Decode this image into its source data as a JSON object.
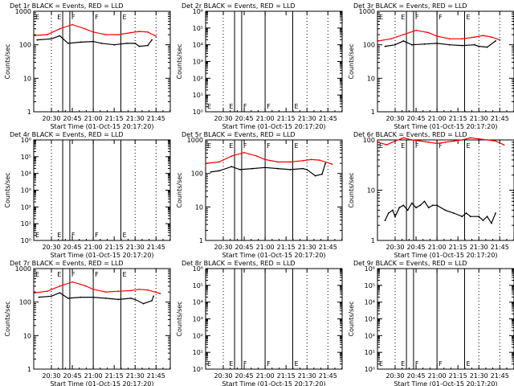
{
  "figure": {
    "start_time_label": "Start Time (01-Oct-15 20:17:20)"
  },
  "chart_data": [
    {
      "type": "line",
      "title": "Det 1r BLACK = Events, RED = LLD",
      "xlabel": "Start Time (01-Oct-15 20:17:20)",
      "ylabel": "Counts/sec",
      "y_scale": "log",
      "ylim": [
        1,
        1000
      ],
      "y_ticks": [
        "1",
        "10",
        "100",
        "1000"
      ],
      "x_ticks": [
        "20:30",
        "20:45",
        "21:00",
        "21:15",
        "21:30",
        "21:45"
      ],
      "markers": [
        "E",
        "F",
        "F",
        "E"
      ],
      "series": [
        {
          "color": "#000000",
          "points": [
            [
              20.33,
              140
            ],
            [
              20.5,
              150
            ],
            [
              20.6,
              185
            ],
            [
              20.7,
              110
            ],
            [
              20.85,
              120
            ],
            [
              21.0,
              125
            ],
            [
              21.1,
              110
            ],
            [
              21.25,
              100
            ],
            [
              21.4,
              110
            ],
            [
              21.5,
              110
            ],
            [
              21.55,
              90
            ],
            [
              21.65,
              95
            ],
            [
              21.7,
              140
            ]
          ]
        },
        {
          "color": "#ff0000",
          "points": [
            [
              20.3,
              190
            ],
            [
              20.45,
              200
            ],
            [
              20.6,
              300
            ],
            [
              20.75,
              400
            ],
            [
              20.9,
              300
            ],
            [
              21.0,
              240
            ],
            [
              21.15,
              200
            ],
            [
              21.3,
              200
            ],
            [
              21.45,
              230
            ],
            [
              21.55,
              250
            ],
            [
              21.65,
              240
            ],
            [
              21.75,
              180
            ]
          ]
        }
      ]
    },
    {
      "type": "line",
      "title": "Det 2r BLACK = Events, RED = LLD",
      "xlabel": "Start Time (01-Oct-15 20:17:20)",
      "ylabel": "Counts/sec",
      "y_scale": "log",
      "ylim": [
        1,
        1000000
      ],
      "y_ticks": [
        "10⁰",
        "10¹",
        "10²",
        "10³",
        "10⁴",
        "10⁵",
        "10⁶"
      ],
      "x_ticks": [
        "20:30",
        "20:45",
        "21:00",
        "21:15",
        "21:30",
        "21:45"
      ],
      "markers": [
        "E",
        "F",
        "F",
        "E"
      ],
      "series": []
    },
    {
      "type": "line",
      "title": "Det 3r BLACK = Events, RED = LLD",
      "xlabel": "Start Time (01-Oct-15 20:17:20)",
      "ylabel": "Counts/sec",
      "y_scale": "log",
      "ylim": [
        1,
        1000
      ],
      "y_ticks": [
        "1",
        "10",
        "100",
        "1000"
      ],
      "x_ticks": [
        "20:30",
        "20:45",
        "21:00",
        "21:15",
        "21:30",
        "21:45"
      ],
      "markers": [
        "E",
        "F",
        "F",
        "E"
      ],
      "series": [
        {
          "color": "#000000",
          "points": [
            [
              20.38,
              90
            ],
            [
              20.5,
              100
            ],
            [
              20.6,
              130
            ],
            [
              20.7,
              100
            ],
            [
              20.85,
              105
            ],
            [
              21.0,
              110
            ],
            [
              21.15,
              100
            ],
            [
              21.3,
              95
            ],
            [
              21.45,
              100
            ],
            [
              21.5,
              90
            ],
            [
              21.6,
              85
            ],
            [
              21.7,
              130
            ]
          ]
        },
        {
          "color": "#ff0000",
          "points": [
            [
              20.3,
              130
            ],
            [
              20.45,
              150
            ],
            [
              20.6,
              200
            ],
            [
              20.75,
              270
            ],
            [
              20.9,
              230
            ],
            [
              21.0,
              180
            ],
            [
              21.15,
              150
            ],
            [
              21.3,
              150
            ],
            [
              21.45,
              170
            ],
            [
              21.55,
              190
            ],
            [
              21.65,
              170
            ],
            [
              21.75,
              140
            ]
          ]
        }
      ]
    },
    {
      "type": "line",
      "title": "Det 4r BLACK = Events, RED = LLD",
      "xlabel": "Start Time (01-Oct-15 20:17:20)",
      "ylabel": "Counts/sec",
      "y_scale": "log",
      "ylim": [
        1,
        1000000
      ],
      "y_ticks": [
        "10⁰",
        "10¹",
        "10²",
        "10³",
        "10⁴",
        "10⁵",
        "10⁶"
      ],
      "x_ticks": [
        "20:30",
        "20:45",
        "21:00",
        "21:15",
        "21:30",
        "21:45"
      ],
      "markers": [
        "E",
        "F",
        "F",
        "E"
      ],
      "series": []
    },
    {
      "type": "line",
      "title": "Det 5r BLACK = Events, RED = LLD",
      "xlabel": "Start Time (01-Oct-15 20:17:20)",
      "ylabel": "Counts/sec",
      "y_scale": "log",
      "ylim": [
        1,
        1000
      ],
      "y_ticks": [
        "1",
        "10",
        "100",
        "1000"
      ],
      "x_ticks": [
        "20:30",
        "20:45",
        "21:00",
        "21:15",
        "21:30",
        "21:45"
      ],
      "markers": [
        "E",
        "F",
        "F",
        "E"
      ],
      "series": [
        {
          "color": "#000000",
          "points": [
            [
              20.35,
              110
            ],
            [
              20.45,
              120
            ],
            [
              20.6,
              160
            ],
            [
              20.7,
              130
            ],
            [
              20.85,
              140
            ],
            [
              21.0,
              150
            ],
            [
              21.15,
              140
            ],
            [
              21.3,
              130
            ],
            [
              21.45,
              140
            ],
            [
              21.5,
              130
            ],
            [
              21.6,
              85
            ],
            [
              21.68,
              95
            ],
            [
              21.72,
              200
            ]
          ]
        },
        {
          "color": "#ff0000",
          "points": [
            [
              20.3,
              200
            ],
            [
              20.45,
              220
            ],
            [
              20.6,
              330
            ],
            [
              20.75,
              420
            ],
            [
              20.9,
              330
            ],
            [
              21.0,
              260
            ],
            [
              21.15,
              220
            ],
            [
              21.3,
              220
            ],
            [
              21.45,
              240
            ],
            [
              21.55,
              260
            ],
            [
              21.65,
              250
            ],
            [
              21.8,
              190
            ]
          ]
        }
      ]
    },
    {
      "type": "line",
      "title": "Det 6r BLACK = Events, RED = LLD",
      "xlabel": "Start Time (01-Oct-15 20:17:20)",
      "ylabel": "Counts/sec",
      "y_scale": "log",
      "ylim": [
        1,
        100
      ],
      "y_ticks": [
        "1",
        "10",
        "100"
      ],
      "x_ticks": [
        "20:30",
        "20:45",
        "21:00",
        "21:15",
        "21:30",
        "21:45"
      ],
      "markers": [
        "E",
        "F",
        "F",
        "E"
      ],
      "series": [
        {
          "color": "#000000",
          "points": [
            [
              20.38,
              2.5
            ],
            [
              20.42,
              3.5
            ],
            [
              20.47,
              4
            ],
            [
              20.5,
              3
            ],
            [
              20.55,
              4.5
            ],
            [
              20.6,
              5
            ],
            [
              20.65,
              4
            ],
            [
              20.7,
              5.5
            ],
            [
              20.75,
              4.5
            ],
            [
              20.8,
              5
            ],
            [
              20.85,
              6
            ],
            [
              20.9,
              4.5
            ],
            [
              20.95,
              5
            ],
            [
              21.0,
              5
            ],
            [
              21.1,
              4
            ],
            [
              21.2,
              3.5
            ],
            [
              21.3,
              3
            ],
            [
              21.35,
              3.5
            ],
            [
              21.4,
              3
            ],
            [
              21.5,
              3
            ],
            [
              21.55,
              2.5
            ],
            [
              21.6,
              3
            ],
            [
              21.65,
              2.2
            ],
            [
              21.7,
              3.5
            ]
          ]
        },
        {
          "color": "#ff0000",
          "points": [
            [
              20.3,
              90
            ],
            [
              20.4,
              80
            ],
            [
              20.5,
              95
            ],
            [
              20.6,
              110
            ],
            [
              20.7,
              100
            ],
            [
              20.8,
              95
            ],
            [
              20.9,
              90
            ],
            [
              21.0,
              85
            ],
            [
              21.1,
              90
            ],
            [
              21.2,
              95
            ],
            [
              21.3,
              100
            ],
            [
              21.4,
              110
            ],
            [
              21.5,
              105
            ],
            [
              21.6,
              100
            ],
            [
              21.7,
              95
            ],
            [
              21.8,
              80
            ]
          ]
        }
      ]
    },
    {
      "type": "line",
      "title": "Det 7r BLACK = Events, RED = LLD",
      "xlabel": "Start Time (01-Oct-15 20:17:20)",
      "ylabel": "Counts/sec",
      "y_scale": "log",
      "ylim": [
        1,
        1000
      ],
      "y_ticks": [
        "1",
        "10",
        "100",
        "1000"
      ],
      "x_ticks": [
        "20:30",
        "20:45",
        "21:00",
        "21:15",
        "21:30",
        "21:45"
      ],
      "markers": [
        "E",
        "F",
        "F",
        "E"
      ],
      "series": [
        {
          "color": "#000000",
          "points": [
            [
              20.35,
              140
            ],
            [
              20.5,
              150
            ],
            [
              20.6,
              190
            ],
            [
              20.7,
              130
            ],
            [
              20.85,
              140
            ],
            [
              21.0,
              140
            ],
            [
              21.15,
              130
            ],
            [
              21.3,
              120
            ],
            [
              21.45,
              130
            ],
            [
              21.5,
              120
            ],
            [
              21.6,
              90
            ],
            [
              21.7,
              110
            ],
            [
              21.72,
              150
            ]
          ]
        },
        {
          "color": "#ff0000",
          "points": [
            [
              20.3,
              190
            ],
            [
              20.45,
              210
            ],
            [
              20.6,
              300
            ],
            [
              20.75,
              400
            ],
            [
              20.9,
              310
            ],
            [
              21.0,
              240
            ],
            [
              21.15,
              200
            ],
            [
              21.3,
              210
            ],
            [
              21.45,
              220
            ],
            [
              21.55,
              240
            ],
            [
              21.65,
              230
            ],
            [
              21.8,
              180
            ]
          ]
        }
      ]
    },
    {
      "type": "line",
      "title": "Det 8r BLACK = Events, RED = LLD",
      "xlabel": "Start Time (01-Oct-15 20:17:20)",
      "ylabel": "Counts/sec",
      "y_scale": "log",
      "ylim": [
        1,
        1000000
      ],
      "y_ticks": [
        "10⁰",
        "10¹",
        "10²",
        "10³",
        "10⁴",
        "10⁵",
        "10⁶"
      ],
      "x_ticks": [
        "20:30",
        "20:45",
        "21:00",
        "21:15",
        "21:30",
        "21:45"
      ],
      "markers": [
        "E",
        "F",
        "F",
        "E"
      ],
      "series": []
    },
    {
      "type": "line",
      "title": "Det 9r BLACK = Events, RED = LLD",
      "xlabel": "Start Time (01-Oct-15 20:17:20)",
      "ylabel": "Counts/sec",
      "y_scale": "log",
      "ylim": [
        1,
        1000000
      ],
      "y_ticks": [
        "10⁰",
        "10¹",
        "10²",
        "10³",
        "10⁴",
        "10⁵",
        "10⁶"
      ],
      "x_ticks": [
        "20:30",
        "20:45",
        "21:00",
        "21:15",
        "21:30",
        "21:45"
      ],
      "markers": [
        "E",
        "F",
        "F",
        "E"
      ],
      "series": []
    }
  ]
}
